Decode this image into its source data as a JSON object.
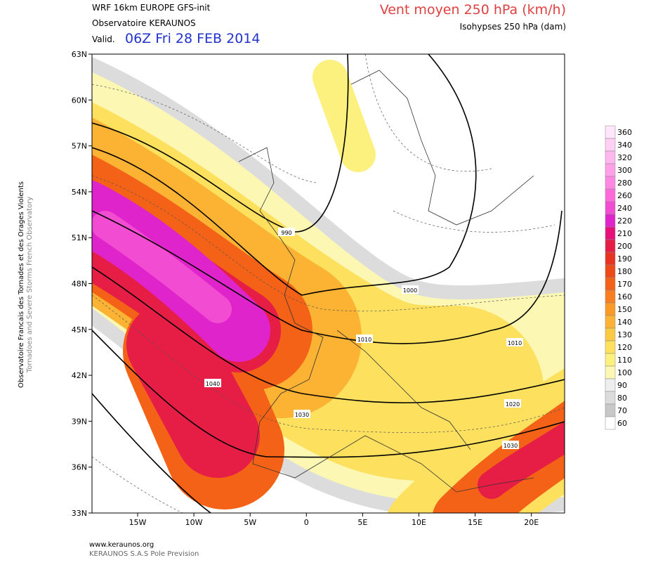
{
  "header": {
    "model": "WRF 16km EUROPE   GFS-init",
    "observatory": "Observatoire KERAUNOS",
    "valid_prefix": "Valid.",
    "valid_time": "06Z Fri 28 FEB 2014",
    "title": "Vent moyen 250 hPa (km/h)",
    "subtitle": "Isohypses 250 hPa (dam)"
  },
  "lat_labels": [
    "63N",
    "60N",
    "57N",
    "54N",
    "51N",
    "48N",
    "45N",
    "42N",
    "39N",
    "36N",
    "33N"
  ],
  "lon_labels": [
    "15W",
    "10W",
    "5W",
    "0",
    "5E",
    "10E",
    "15E",
    "20E"
  ],
  "contour_labels": [
    "990",
    "1000",
    "1010",
    "1010",
    "1020",
    "1030",
    "1040",
    "1030"
  ],
  "colorbar": {
    "levels": [
      360,
      340,
      320,
      300,
      280,
      260,
      240,
      220,
      210,
      200,
      190,
      180,
      170,
      160,
      150,
      140,
      130,
      120,
      110,
      100,
      90,
      80,
      70,
      60
    ],
    "colors": [
      "#ffe6fa",
      "#ffd0f4",
      "#ffb8ee",
      "#ffa0e8",
      "#ff88e2",
      "#ff6ada",
      "#f24cd2",
      "#e024cc",
      "#e8107a",
      "#e61e46",
      "#e83222",
      "#ee4a18",
      "#f46218",
      "#f87e20",
      "#fc9a28",
      "#fcb232",
      "#fcca42",
      "#fce05e",
      "#fcf07e",
      "#fcf8b4",
      "#eeeeee",
      "#dcdcdc",
      "#c8c8c8",
      "#ffffff"
    ]
  },
  "side": {
    "line1": "Observatoire Francais des Tornades et des Orages Violents",
    "line2": "Tornadoes and Severe Storms French Observatory"
  },
  "footer": {
    "site": "www.keraunos.org",
    "company": "KERAUNOS S.A.S Pole Prevision"
  }
}
